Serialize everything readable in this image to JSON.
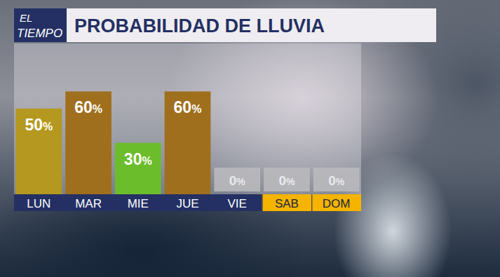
{
  "logo": {
    "lines": [
      "EL",
      "TIEMPO"
    ]
  },
  "chart_data": {
    "type": "bar",
    "title": "PROBABILIDAD DE LLUVIA",
    "categories": [
      "LUN",
      "MAR",
      "MIE",
      "JUE",
      "VIE",
      "SAB",
      "DOM"
    ],
    "values": [
      50,
      60,
      30,
      60,
      0,
      0,
      0
    ],
    "value_labels": [
      "50%",
      "60%",
      "30%",
      "60%",
      "0%",
      "0%",
      "0%"
    ],
    "colors": [
      "#b4981f",
      "#a06f1d",
      "#6cbd2b",
      "#a06f1d",
      "#b9b9bd",
      "#b9b9bd",
      "#b9b9bd"
    ],
    "ylim": [
      0,
      88
    ],
    "data_labels": true,
    "tick_labels": "x",
    "grid": false
  }
}
